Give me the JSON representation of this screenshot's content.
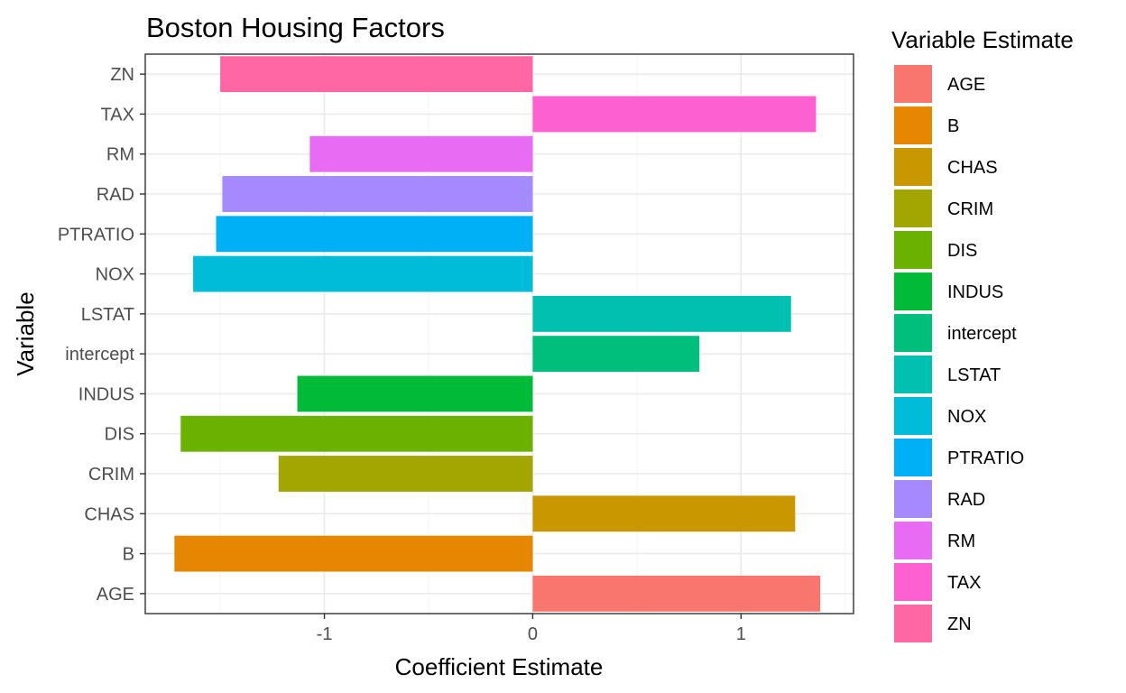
{
  "chart_data": {
    "type": "bar",
    "orientation": "horizontal",
    "title": "Boston Housing Factors",
    "xlabel": "Coefficient Estimate",
    "ylabel": "Variable",
    "xlim": [
      -1.86,
      1.54
    ],
    "xticks": [
      -1,
      0,
      1
    ],
    "xtick_labels": [
      "-1",
      "0",
      "1"
    ],
    "grid": true,
    "legend_title": "Variable Estimate",
    "legend_position": "right",
    "categories": [
      "AGE",
      "B",
      "CHAS",
      "CRIM",
      "DIS",
      "INDUS",
      "intercept",
      "LSTAT",
      "NOX",
      "PTRATIO",
      "RAD",
      "RM",
      "TAX",
      "ZN"
    ],
    "values": [
      1.38,
      -1.72,
      1.26,
      -1.22,
      -1.69,
      -1.13,
      0.8,
      1.24,
      -1.63,
      -1.52,
      -1.49,
      -1.07,
      1.36,
      -1.5
    ],
    "colors": [
      "#F8766D",
      "#E58700",
      "#C99800",
      "#A3A500",
      "#6BB100",
      "#00BA38",
      "#00BF7D",
      "#00C0AF",
      "#00BCD8",
      "#00B0F6",
      "#A58AFF",
      "#E76BF3",
      "#FD61D1",
      "#FF67A4"
    ]
  }
}
